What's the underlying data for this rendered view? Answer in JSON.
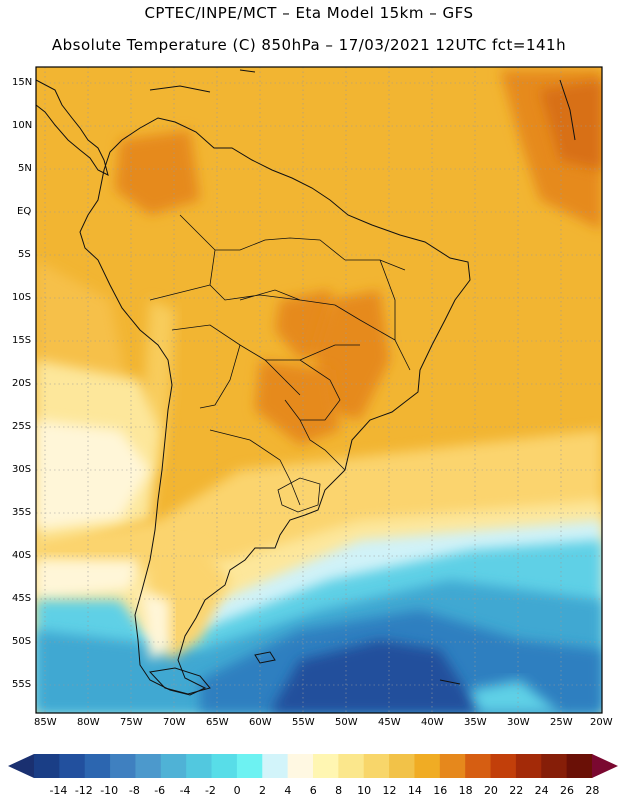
{
  "header": {
    "line1": "CPTEC/INPE/MCT –  Eta Model 15km – GFS",
    "line2": "Absolute Temperature (C) 850hPa – 17/03/2021 12UTC fct=141h"
  },
  "axes": {
    "lat_labels": [
      "15N",
      "10N",
      "5N",
      "EQ",
      "5S",
      "10S",
      "15S",
      "20S",
      "25S",
      "30S",
      "35S",
      "40S",
      "45S",
      "50S",
      "55S"
    ],
    "lon_labels": [
      "85W",
      "80W",
      "75W",
      "70W",
      "65W",
      "60W",
      "55W",
      "50W",
      "45W",
      "40W",
      "35W",
      "30W",
      "25W",
      "20W"
    ]
  },
  "colorbar": {
    "labels": [
      "-14",
      "-12",
      "-10",
      "-8",
      "-6",
      "-4",
      "-2",
      "0",
      "2",
      "4",
      "6",
      "8",
      "10",
      "12",
      "14",
      "16",
      "18",
      "20",
      "22",
      "24",
      "26",
      "28"
    ],
    "colors": [
      "#1a3e86",
      "#22509e",
      "#2c66b0",
      "#3f80c0",
      "#4c99cc",
      "#4fb2d6",
      "#52c8df",
      "#58dde8",
      "#6df2f2",
      "#d2f4fa",
      "#fff8e2",
      "#fff6b2",
      "#fbe78c",
      "#f8d66a",
      "#f2c248",
      "#f0ac24",
      "#e6881c",
      "#d65e12",
      "#c23f0a",
      "#a32a08",
      "#861e08",
      "#6a1006"
    ],
    "low_color": "#1a3070",
    "high_color": "#7a0830"
  },
  "colors": {
    "warm_base": "#f2b532",
    "hot": "#e68a1e",
    "hotter": "#d87018",
    "cool_land": "#fbd46e",
    "pale": "#fde79b",
    "cream": "#fff6d8",
    "cyan_light": "#d0f2f8",
    "cyan": "#5fd0e6",
    "blue_mid": "#3fa8d2",
    "blue": "#2f7fc0",
    "blue_dark": "#244f9c"
  }
}
